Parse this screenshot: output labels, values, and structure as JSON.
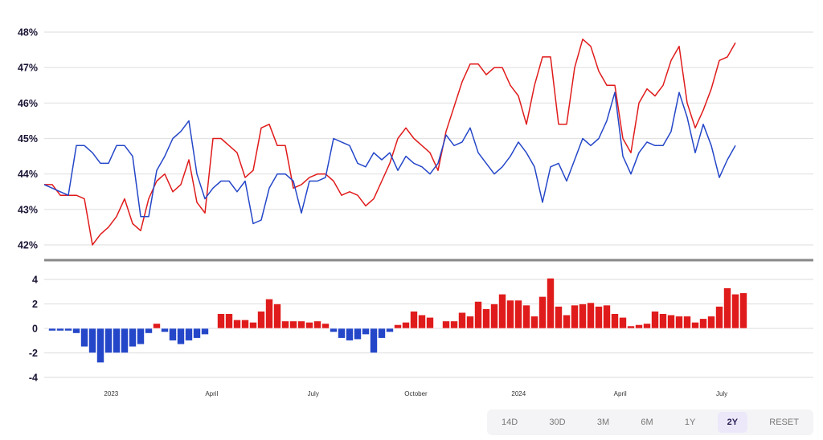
{
  "chart_data": [
    {
      "type": "line",
      "title": "",
      "ylabel": "",
      "ylim": [
        42,
        48
      ],
      "y_ticks": [
        "42%",
        "43%",
        "44%",
        "45%",
        "46%",
        "47%",
        "48%"
      ],
      "y_tick_values": [
        42,
        43,
        44,
        45,
        46,
        47,
        48
      ],
      "grid": true,
      "x_start_date": "2022-11-02",
      "x_step_days": 7.2,
      "series": [
        {
          "name": "red",
          "color": "#e01b1b",
          "values": [
            43.7,
            43.7,
            43.4,
            43.4,
            43.4,
            43.3,
            42.0,
            42.3,
            42.5,
            42.8,
            43.3,
            42.6,
            42.4,
            43.3,
            43.8,
            44.0,
            43.5,
            43.7,
            44.4,
            43.2,
            42.9,
            45.0,
            45.0,
            44.8,
            44.6,
            43.9,
            44.1,
            45.3,
            45.4,
            44.8,
            44.8,
            43.6,
            43.7,
            43.9,
            44.0,
            44.0,
            43.8,
            43.4,
            43.5,
            43.4,
            43.1,
            43.3,
            43.8,
            44.3,
            45.0,
            45.3,
            45.0,
            44.8,
            44.6,
            44.1,
            45.2,
            45.9,
            46.6,
            47.1,
            47.1,
            46.8,
            47.0,
            47.0,
            46.5,
            46.2,
            45.4,
            46.5,
            47.3,
            47.3,
            45.4,
            45.4,
            47.0,
            47.8,
            47.6,
            46.9,
            46.5,
            46.5,
            45.0,
            44.6,
            46.0,
            46.4,
            46.2,
            46.5,
            47.2,
            47.6,
            46.0,
            45.3,
            45.8,
            46.4,
            47.2,
            47.3,
            47.7
          ]
        },
        {
          "name": "blue",
          "color": "#2446c8",
          "values": [
            43.7,
            43.6,
            43.5,
            43.4,
            44.8,
            44.8,
            44.6,
            44.3,
            44.3,
            44.8,
            44.8,
            44.5,
            42.8,
            42.8,
            44.1,
            44.5,
            45.0,
            45.2,
            45.5,
            44.0,
            43.3,
            43.6,
            43.8,
            43.8,
            43.5,
            43.8,
            42.6,
            42.7,
            43.6,
            44.0,
            44.0,
            43.8,
            42.9,
            43.8,
            43.8,
            43.9,
            45.0,
            44.9,
            44.8,
            44.3,
            44.2,
            44.6,
            44.4,
            44.6,
            44.1,
            44.5,
            44.3,
            44.2,
            44.0,
            44.3,
            45.1,
            44.8,
            44.9,
            45.3,
            44.6,
            44.3,
            44.0,
            44.2,
            44.5,
            44.9,
            44.6,
            44.2,
            43.2,
            44.2,
            44.3,
            43.8,
            44.4,
            45.0,
            44.8,
            45.0,
            45.5,
            46.3,
            44.5,
            44.0,
            44.6,
            44.9,
            44.8,
            44.8,
            45.2,
            46.3,
            45.6,
            44.6,
            45.4,
            44.8,
            43.9,
            44.4,
            44.8
          ]
        }
      ]
    },
    {
      "type": "bar",
      "ylim": [
        -4,
        4
      ],
      "y_ticks": [
        "-4",
        "-2",
        "0",
        "2",
        "4"
      ],
      "y_tick_values": [
        -4,
        -2,
        0,
        2,
        4
      ],
      "grid": true,
      "positive_color": "#e01b1b",
      "negative_color": "#2446c8",
      "x_start_date": "2022-11-02",
      "x_step_days": 7.2,
      "values": [
        -0.2,
        -0.2,
        -0.2,
        -0.4,
        -1.5,
        -2.0,
        -2.8,
        -2.0,
        -2.0,
        -2.0,
        -1.5,
        -1.3,
        -0.4,
        0.4,
        -0.3,
        -1.0,
        -1.3,
        -1.0,
        -0.8,
        -0.5,
        0.0,
        1.2,
        1.2,
        0.7,
        0.7,
        0.5,
        1.4,
        2.4,
        2.0,
        0.6,
        0.6,
        0.6,
        0.5,
        0.6,
        0.4,
        -0.3,
        -0.8,
        -1.0,
        -0.9,
        -0.5,
        -2.0,
        -0.8,
        -0.3,
        0.3,
        0.5,
        1.4,
        1.1,
        0.9,
        0.0,
        0.6,
        0.6,
        1.3,
        1.0,
        2.2,
        1.6,
        2.0,
        2.8,
        2.3,
        2.3,
        1.9,
        1.0,
        2.6,
        4.1,
        1.8,
        1.1,
        1.9,
        2.0,
        2.1,
        1.8,
        1.9,
        1.2,
        0.9,
        0.2,
        0.3,
        0.4,
        1.4,
        1.2,
        1.1,
        1.0,
        1.0,
        0.5,
        0.8,
        1.0,
        1.8,
        3.3,
        2.8,
        2.9
      ]
    }
  ],
  "x_ticks": [
    {
      "date": "2023-01-01",
      "label": "2023"
    },
    {
      "date": "2023-04-01",
      "label": "April"
    },
    {
      "date": "2023-07-01",
      "label": "July"
    },
    {
      "date": "2023-10-01",
      "label": "October"
    },
    {
      "date": "2024-01-01",
      "label": "2024"
    },
    {
      "date": "2024-04-01",
      "label": "April"
    },
    {
      "date": "2024-07-01",
      "label": "July"
    }
  ],
  "range_buttons": [
    {
      "label": "14D",
      "active": false
    },
    {
      "label": "30D",
      "active": false
    },
    {
      "label": "3M",
      "active": false
    },
    {
      "label": "6M",
      "active": false
    },
    {
      "label": "1Y",
      "active": false
    },
    {
      "label": "2Y",
      "active": true
    },
    {
      "label": "RESET",
      "active": false
    }
  ]
}
